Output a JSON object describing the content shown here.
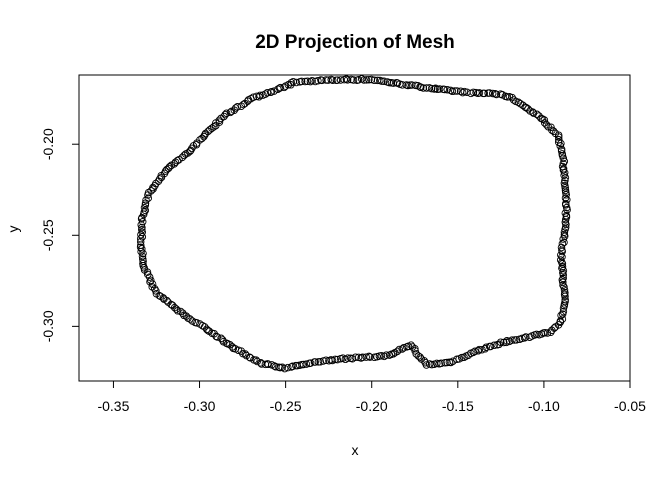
{
  "chart_data": {
    "type": "scatter",
    "title": "2D Projection of Mesh",
    "xlabel": "x",
    "ylabel": "y",
    "xlim": [
      -0.37,
      -0.05
    ],
    "ylim": [
      -0.33,
      -0.162
    ],
    "x_ticks": [
      -0.35,
      -0.3,
      -0.25,
      -0.2,
      -0.15,
      -0.1,
      -0.05
    ],
    "x_tick_labels": [
      "-0.35",
      "-0.30",
      "-0.25",
      "-0.20",
      "-0.15",
      "-0.10",
      "-0.05"
    ],
    "y_ticks": [
      -0.3,
      -0.25,
      -0.2
    ],
    "y_tick_labels": [
      "-0.30",
      "-0.25",
      "-0.20"
    ],
    "grid": false,
    "marker": "open-circle",
    "color": "#000000",
    "outline": [
      [
        -0.245,
        -0.166
      ],
      [
        -0.23,
        -0.165
      ],
      [
        -0.215,
        -0.1645
      ],
      [
        -0.2,
        -0.1645
      ],
      [
        -0.19,
        -0.166
      ],
      [
        -0.175,
        -0.168
      ],
      [
        -0.16,
        -0.17
      ],
      [
        -0.15,
        -0.171
      ],
      [
        -0.14,
        -0.172
      ],
      [
        -0.13,
        -0.172
      ],
      [
        -0.12,
        -0.174
      ],
      [
        -0.11,
        -0.18
      ],
      [
        -0.1,
        -0.187
      ],
      [
        -0.092,
        -0.195
      ],
      [
        -0.089,
        -0.205
      ],
      [
        -0.088,
        -0.22
      ],
      [
        -0.087,
        -0.235
      ],
      [
        -0.088,
        -0.248
      ],
      [
        -0.09,
        -0.262
      ],
      [
        -0.089,
        -0.272
      ],
      [
        -0.088,
        -0.285
      ],
      [
        -0.09,
        -0.297
      ],
      [
        -0.096,
        -0.303
      ],
      [
        -0.11,
        -0.306
      ],
      [
        -0.125,
        -0.309
      ],
      [
        -0.14,
        -0.314
      ],
      [
        -0.155,
        -0.32
      ],
      [
        -0.168,
        -0.321
      ],
      [
        -0.173,
        -0.316
      ],
      [
        -0.177,
        -0.31
      ],
      [
        -0.19,
        -0.316
      ],
      [
        -0.205,
        -0.317
      ],
      [
        -0.22,
        -0.318
      ],
      [
        -0.235,
        -0.32
      ],
      [
        -0.25,
        -0.323
      ],
      [
        -0.265,
        -0.32
      ],
      [
        -0.28,
        -0.312
      ],
      [
        -0.295,
        -0.302
      ],
      [
        -0.31,
        -0.293
      ],
      [
        -0.325,
        -0.282
      ],
      [
        -0.332,
        -0.268
      ],
      [
        -0.334,
        -0.255
      ],
      [
        -0.333,
        -0.24
      ],
      [
        -0.33,
        -0.228
      ],
      [
        -0.32,
        -0.215
      ],
      [
        -0.305,
        -0.203
      ],
      [
        -0.295,
        -0.193
      ],
      [
        -0.285,
        -0.184
      ],
      [
        -0.27,
        -0.175
      ],
      [
        -0.255,
        -0.17
      ],
      [
        -0.245,
        -0.166
      ]
    ]
  }
}
